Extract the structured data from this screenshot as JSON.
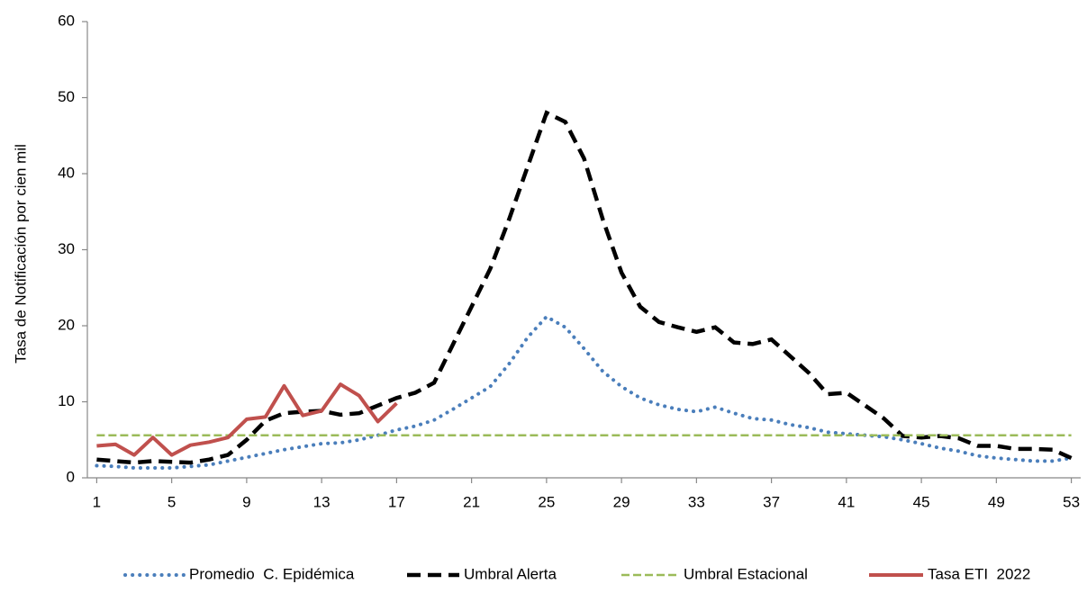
{
  "chart_data": {
    "type": "line",
    "y_label": "Tasa de Notificación por cien mil",
    "x": [
      1,
      2,
      3,
      4,
      5,
      6,
      7,
      8,
      9,
      10,
      11,
      12,
      13,
      14,
      15,
      16,
      17,
      18,
      19,
      20,
      21,
      22,
      23,
      24,
      25,
      26,
      27,
      28,
      29,
      30,
      31,
      32,
      33,
      34,
      35,
      36,
      37,
      38,
      39,
      40,
      41,
      42,
      43,
      44,
      45,
      46,
      47,
      48,
      49,
      50,
      51,
      52,
      53
    ],
    "xlim": [
      0.5,
      53.5
    ],
    "xticks": [
      1,
      5,
      9,
      13,
      17,
      21,
      25,
      29,
      33,
      37,
      41,
      45,
      49,
      53
    ],
    "ylim": [
      0,
      60
    ],
    "yticks": [
      0,
      10,
      20,
      30,
      40,
      50,
      60
    ],
    "legend": "bottom",
    "series": [
      {
        "name": "Promedio  C. Epidémica",
        "color": "#4a7ebb",
        "style": "dotted",
        "values": [
          1.6,
          1.5,
          1.3,
          1.3,
          1.3,
          1.5,
          1.7,
          2.2,
          2.7,
          3.2,
          3.7,
          4.1,
          4.5,
          4.6,
          5.0,
          5.6,
          6.3,
          6.8,
          7.6,
          9.0,
          10.5,
          12.0,
          15.0,
          18.5,
          21.2,
          19.8,
          17.0,
          14.0,
          12.0,
          10.5,
          9.6,
          9.0,
          8.7,
          9.3,
          8.5,
          7.8,
          7.6,
          7.0,
          6.6,
          6.0,
          5.8,
          5.6,
          5.4,
          5.0,
          4.5,
          3.9,
          3.5,
          2.9,
          2.6,
          2.4,
          2.2,
          2.2,
          2.6
        ]
      },
      {
        "name": "Umbral Alerta",
        "color": "#000000",
        "style": "dashed",
        "values": [
          2.4,
          2.2,
          2.0,
          2.2,
          2.1,
          2.0,
          2.4,
          3.0,
          5.0,
          7.5,
          8.5,
          8.7,
          8.8,
          8.3,
          8.5,
          9.5,
          10.5,
          11.2,
          12.5,
          17.5,
          22.5,
          27.5,
          34,
          41,
          48,
          46.8,
          42,
          34,
          27,
          22.5,
          20.5,
          19.8,
          19.2,
          19.8,
          17.8,
          17.6,
          18.2,
          16.0,
          13.8,
          11.0,
          11.2,
          9.5,
          7.8,
          5.5,
          5.3,
          5.5,
          5.2,
          4.2,
          4.2,
          3.8,
          3.8,
          3.7,
          2.6
        ]
      },
      {
        "name": "Umbral Estacional",
        "color": "#9bbb59",
        "style": "thin-dashed",
        "values": [
          5.6,
          5.6,
          5.6,
          5.6,
          5.6,
          5.6,
          5.6,
          5.6,
          5.6,
          5.6,
          5.6,
          5.6,
          5.6,
          5.6,
          5.6,
          5.6,
          5.6,
          5.6,
          5.6,
          5.6,
          5.6,
          5.6,
          5.6,
          5.6,
          5.6,
          5.6,
          5.6,
          5.6,
          5.6,
          5.6,
          5.6,
          5.6,
          5.6,
          5.6,
          5.6,
          5.6,
          5.6,
          5.6,
          5.6,
          5.6,
          5.6,
          5.6,
          5.6,
          5.6,
          5.6,
          5.6,
          5.6,
          5.6,
          5.6,
          5.6,
          5.6,
          5.6,
          5.6
        ]
      },
      {
        "name": "Tasa ETI  2022",
        "color": "#c0504d",
        "style": "solid",
        "values": [
          4.2,
          4.4,
          3.0,
          5.3,
          3.0,
          4.3,
          4.7,
          5.3,
          7.7,
          8.0,
          12.1,
          8.2,
          8.8,
          12.3,
          10.8,
          7.4,
          9.8,
          null,
          null,
          null,
          null,
          null,
          null,
          null,
          null,
          null,
          null,
          null,
          null,
          null,
          null,
          null,
          null,
          null,
          null,
          null,
          null,
          null,
          null,
          null,
          null,
          null,
          null,
          null,
          null,
          null,
          null,
          null,
          null,
          null,
          null,
          null,
          null
        ]
      }
    ]
  }
}
